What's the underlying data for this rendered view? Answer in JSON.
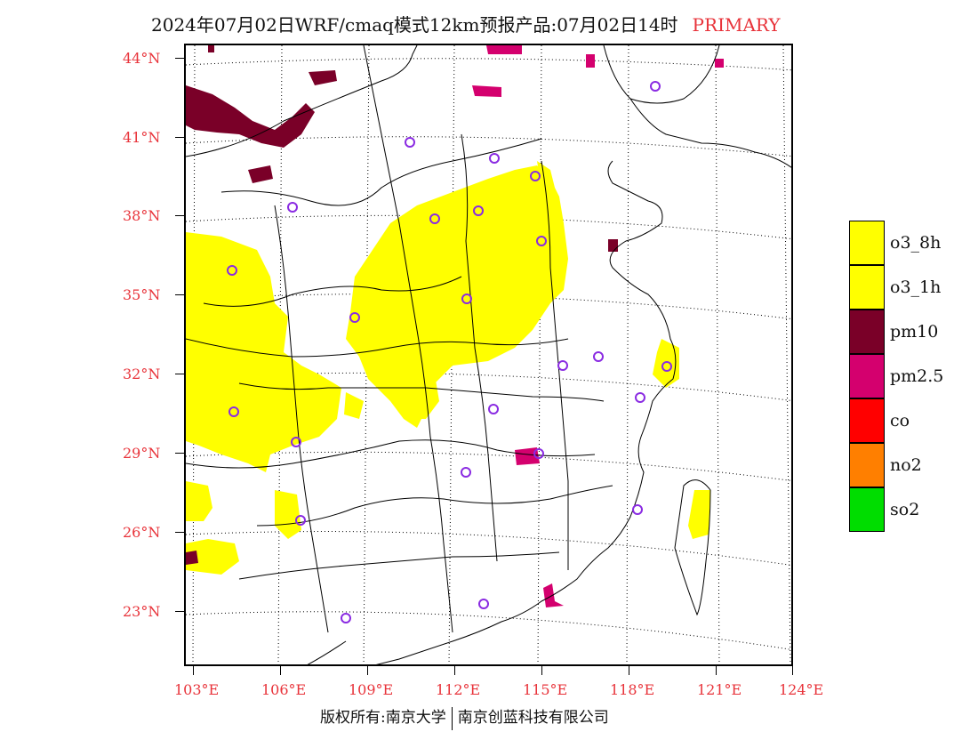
{
  "title": {
    "main": "2024年07月02日WRF/cmaq模式12km预报产品:07月02日14时",
    "tag": "PRIMARY"
  },
  "axes": {
    "lat_labels": [
      "44°N",
      "41°N",
      "38°N",
      "35°N",
      "32°N",
      "29°N",
      "26°N",
      "23°N"
    ],
    "lon_labels": [
      "103°E",
      "106°E",
      "109°E",
      "112°E",
      "115°E",
      "118°E",
      "121°E",
      "124°E"
    ]
  },
  "legend": {
    "items": [
      {
        "label": "o3_8h",
        "color": "#ffff00"
      },
      {
        "label": "o3_1h",
        "color": "#ffff00"
      },
      {
        "label": "pm10",
        "color": "#7a0028"
      },
      {
        "label": "pm2.5",
        "color": "#d4006e"
      },
      {
        "label": "co",
        "color": "#ff0000"
      },
      {
        "label": "no2",
        "color": "#ff7f00"
      },
      {
        "label": "so2",
        "color": "#00dd00"
      }
    ]
  },
  "colors": {
    "o3": "#ffff00",
    "pm10": "#7a0028",
    "pm25": "#d4006e",
    "city_marker": "#8a2be2",
    "axis_label": "#e8333a"
  },
  "footer": {
    "left": "版权所有:南京大学",
    "right": "南京创蓝科技有限公司"
  }
}
